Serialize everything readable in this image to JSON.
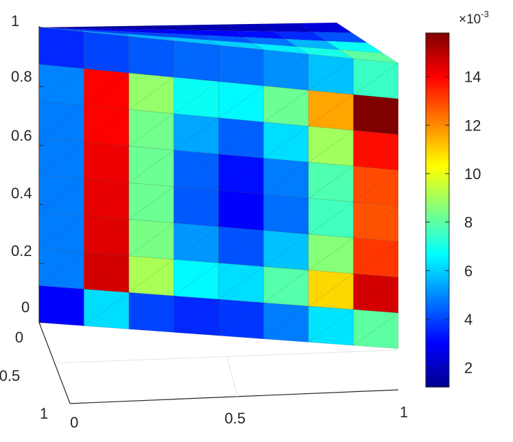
{
  "chart_data": {
    "type": "heatmap",
    "title": "",
    "xlabel": "",
    "ylabel": "",
    "zlabel": "",
    "xlim": [
      0,
      1
    ],
    "ylim": [
      0,
      1
    ],
    "zlim": [
      0,
      1
    ],
    "x_ticks": [
      "0",
      "0.5",
      "1"
    ],
    "y_ticks": [
      "0",
      "0.5",
      "1"
    ],
    "z_ticks": [
      "0",
      "0.2",
      "0.4",
      "0.6",
      "0.8",
      "1"
    ],
    "colormap": "jet",
    "colorbar": {
      "range": [
        0.0012,
        0.0158
      ],
      "ticks": [
        2,
        4,
        6,
        8,
        10,
        12,
        14
      ],
      "exponent": "×10",
      "exponent_power": "-3"
    },
    "front_face_values_e3": [
      [
        3.6,
        4.0,
        4.3,
        4.5,
        4.6,
        5.1,
        5.8,
        7.5
      ],
      [
        4.9,
        14.0,
        8.8,
        6.8,
        6.6,
        8.2,
        11.6,
        15.8
      ],
      [
        4.8,
        14.0,
        8.3,
        5.4,
        4.4,
        6.2,
        9.0,
        13.8
      ],
      [
        4.8,
        14.2,
        8.2,
        4.4,
        3.2,
        4.8,
        7.8,
        12.9
      ],
      [
        4.8,
        14.3,
        8.2,
        4.3,
        3.0,
        4.6,
        7.6,
        12.8
      ],
      [
        4.8,
        14.4,
        8.4,
        5.2,
        4.2,
        5.8,
        8.6,
        13.2
      ],
      [
        4.8,
        14.6,
        9.1,
        6.6,
        6.2,
        7.9,
        10.9,
        14.6
      ],
      [
        3.0,
        6.2,
        4.0,
        3.6,
        3.8,
        4.8,
        6.3,
        8.0
      ]
    ],
    "top_face_values_e3": [
      [
        1.5,
        1.6,
        1.7,
        1.8,
        1.9,
        2.0,
        2.2,
        2.5
      ],
      [
        2.6,
        2.7,
        2.8,
        2.9,
        3.0,
        3.2,
        3.6,
        4.2
      ],
      [
        3.8,
        3.9,
        4.0,
        4.1,
        4.3,
        4.7,
        5.6,
        6.8
      ],
      [
        4.6,
        5.2,
        5.6,
        5.8,
        6.0,
        6.4,
        7.0,
        8.0
      ]
    ]
  }
}
